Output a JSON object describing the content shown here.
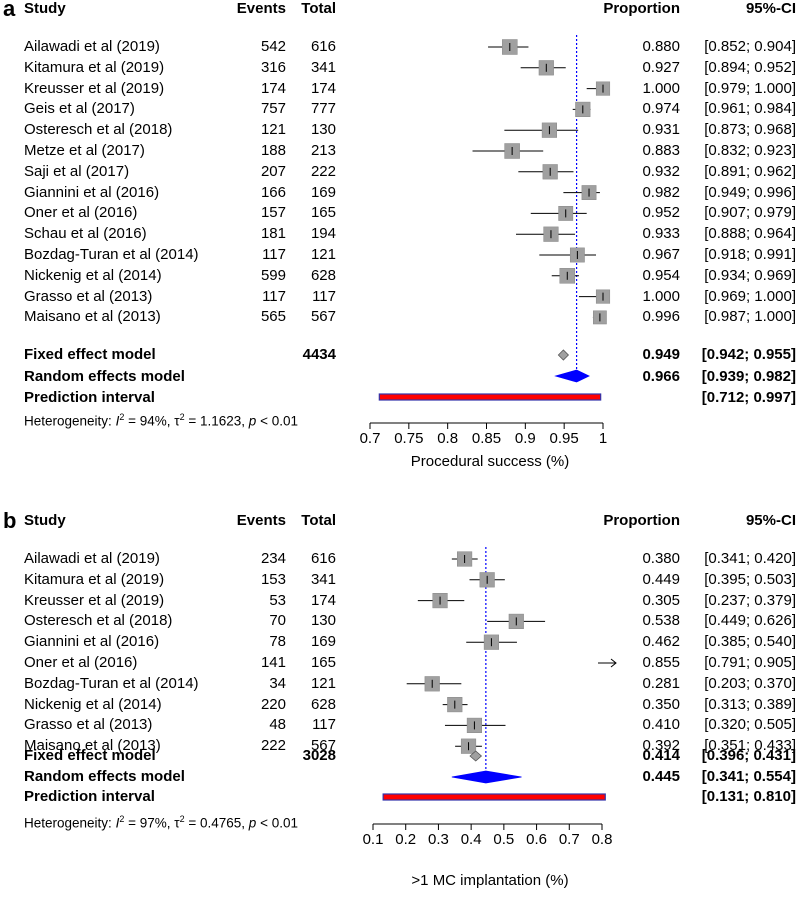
{
  "chart_data": [
    {
      "panel": "a",
      "type": "forest",
      "columns": {
        "study": "Study",
        "events": "Events",
        "total": "Total",
        "proportion": "Proportion",
        "ci": "95%-CI"
      },
      "studies": [
        {
          "study": "Ailawadi et al (2019)",
          "events": "542",
          "total": "616",
          "prop": 0.88,
          "lo": 0.852,
          "hi": 0.904,
          "prop_text": "0.880",
          "ci_text": "[0.852; 0.904]",
          "weight": 1.0
        },
        {
          "study": "Kitamura et al (2019)",
          "events": "316",
          "total": "341",
          "prop": 0.927,
          "lo": 0.894,
          "hi": 0.952,
          "prop_text": "0.927",
          "ci_text": "[0.894; 0.952]",
          "weight": 0.95
        },
        {
          "study": "Kreusser et al (2019)",
          "events": "174",
          "total": "174",
          "prop": 1.0,
          "lo": 0.979,
          "hi": 1.0,
          "prop_text": "1.000",
          "ci_text": "[0.979; 1.000]",
          "weight": 0.8
        },
        {
          "study": "Geis et al (2017)",
          "events": "757",
          "total": "777",
          "prop": 0.974,
          "lo": 0.961,
          "hi": 0.984,
          "prop_text": "0.974",
          "ci_text": "[0.961; 0.984]",
          "weight": 0.95
        },
        {
          "study": "Osteresch et al (2018)",
          "events": "121",
          "total": "130",
          "prop": 0.931,
          "lo": 0.873,
          "hi": 0.968,
          "prop_text": "0.931",
          "ci_text": "[0.873; 0.968]",
          "weight": 0.95
        },
        {
          "study": "Metze et al (2017)",
          "events": "188",
          "total": "213",
          "prop": 0.883,
          "lo": 0.832,
          "hi": 0.923,
          "prop_text": "0.883",
          "ci_text": "[0.832; 0.923]",
          "weight": 1.0
        },
        {
          "study": "Saji et al (2017)",
          "events": "207",
          "total": "222",
          "prop": 0.932,
          "lo": 0.891,
          "hi": 0.962,
          "prop_text": "0.932",
          "ci_text": "[0.891; 0.962]",
          "weight": 0.95
        },
        {
          "study": "Giannini et al (2016)",
          "events": "166",
          "total": "169",
          "prop": 0.982,
          "lo": 0.949,
          "hi": 0.996,
          "prop_text": "0.982",
          "ci_text": "[0.949; 0.996]",
          "weight": 0.9
        },
        {
          "study": "Oner et al (2016)",
          "events": "157",
          "total": "165",
          "prop": 0.952,
          "lo": 0.907,
          "hi": 0.979,
          "prop_text": "0.952",
          "ci_text": "[0.907; 0.979]",
          "weight": 0.9
        },
        {
          "study": "Schau et al (2016)",
          "events": "181",
          "total": "194",
          "prop": 0.933,
          "lo": 0.888,
          "hi": 0.964,
          "prop_text": "0.933",
          "ci_text": "[0.888; 0.964]",
          "weight": 0.95
        },
        {
          "study": "Bozdag-Turan et al (2014)",
          "events": "117",
          "total": "121",
          "prop": 0.967,
          "lo": 0.918,
          "hi": 0.991,
          "prop_text": "0.967",
          "ci_text": "[0.918; 0.991]",
          "weight": 0.9
        },
        {
          "study": "Nickenig et al (2014)",
          "events": "599",
          "total": "628",
          "prop": 0.954,
          "lo": 0.934,
          "hi": 0.969,
          "prop_text": "0.954",
          "ci_text": "[0.934; 0.969]",
          "weight": 1.0
        },
        {
          "study": "Grasso et al (2013)",
          "events": "117",
          "total": "117",
          "prop": 1.0,
          "lo": 0.969,
          "hi": 1.0,
          "prop_text": "1.000",
          "ci_text": "[0.969; 1.000]",
          "weight": 0.8
        },
        {
          "study": "Maisano et al (2013)",
          "events": "565",
          "total": "567",
          "prop": 0.996,
          "lo": 0.987,
          "hi": 1.0,
          "prop_text": "0.996",
          "ci_text": "[0.987; 1.000]",
          "weight": 0.75
        }
      ],
      "fixed": {
        "label": "Fixed effect model",
        "total": "4434",
        "prop": 0.949,
        "lo": 0.942,
        "hi": 0.955,
        "prop_text": "0.949",
        "ci_text": "[0.942; 0.955]"
      },
      "random": {
        "label": "Random effects model",
        "prop": 0.966,
        "lo": 0.939,
        "hi": 0.982,
        "prop_text": "0.966",
        "ci_text": "[0.939; 0.982]"
      },
      "prediction": {
        "label": "Prediction interval",
        "lo": 0.712,
        "hi": 0.997,
        "ci_text": "[0.712; 0.997]"
      },
      "heterogeneity": {
        "prefix": "Heterogeneity: ",
        "i2_sym": "I",
        "i2_value": " = 94%, τ",
        "tau2_value": " = 1.1623, ",
        "p_sym": "p",
        "p_value": " < 0.01"
      },
      "axis": {
        "min": 0.7,
        "max": 1.0,
        "ticks": [
          0.7,
          0.75,
          0.8,
          0.85,
          0.9,
          0.95,
          1.0
        ],
        "tick_labels": [
          "0.7",
          "0.75",
          "0.8",
          "0.85",
          "0.9",
          "0.95",
          "1"
        ],
        "label": "Procedural success (%)"
      }
    },
    {
      "panel": "b",
      "type": "forest",
      "columns": {
        "study": "Study",
        "events": "Events",
        "total": "Total",
        "proportion": "Proportion",
        "ci": "95%-CI"
      },
      "studies": [
        {
          "study": "Ailawadi et al (2019)",
          "events": "234",
          "total": "616",
          "prop": 0.38,
          "lo": 0.341,
          "hi": 0.42,
          "prop_text": "0.380",
          "ci_text": "[0.341; 0.420]",
          "weight": 0.95
        },
        {
          "study": "Kitamura et al (2019)",
          "events": "153",
          "total": "341",
          "prop": 0.449,
          "lo": 0.395,
          "hi": 0.503,
          "prop_text": "0.449",
          "ci_text": "[0.395; 0.503]",
          "weight": 0.95
        },
        {
          "study": "Kreusser et al (2019)",
          "events": "53",
          "total": "174",
          "prop": 0.305,
          "lo": 0.237,
          "hi": 0.379,
          "prop_text": "0.305",
          "ci_text": "[0.237; 0.379]",
          "weight": 0.95
        },
        {
          "study": "Osteresch et al (2018)",
          "events": "70",
          "total": "130",
          "prop": 0.538,
          "lo": 0.449,
          "hi": 0.626,
          "prop_text": "0.538",
          "ci_text": "[0.449; 0.626]",
          "weight": 0.95
        },
        {
          "study": "Giannini et al (2016)",
          "events": "78",
          "total": "169",
          "prop": 0.462,
          "lo": 0.385,
          "hi": 0.54,
          "prop_text": "0.462",
          "ci_text": "[0.385; 0.540]",
          "weight": 0.95
        },
        {
          "study": "Oner et al (2016)",
          "events": "141",
          "total": "165",
          "prop": 0.855,
          "lo": 0.791,
          "hi": 0.905,
          "prop_text": "0.855",
          "ci_text": "[0.791; 0.905]",
          "weight": 0.95,
          "offscale": true
        },
        {
          "study": "Bozdag-Turan et al (2014)",
          "events": "34",
          "total": "121",
          "prop": 0.281,
          "lo": 0.203,
          "hi": 0.37,
          "prop_text": "0.281",
          "ci_text": "[0.203; 0.370]",
          "weight": 0.95
        },
        {
          "study": "Nickenig et al (2014)",
          "events": "220",
          "total": "628",
          "prop": 0.35,
          "lo": 0.313,
          "hi": 0.389,
          "prop_text": "0.350",
          "ci_text": "[0.313; 0.389]",
          "weight": 0.95
        },
        {
          "study": "Grasso et al (2013)",
          "events": "48",
          "total": "117",
          "prop": 0.41,
          "lo": 0.32,
          "hi": 0.505,
          "prop_text": "0.410",
          "ci_text": "[0.320; 0.505]",
          "weight": 0.95
        },
        {
          "study": "Maisano et al (2013)",
          "events": "222",
          "total": "567",
          "prop": 0.392,
          "lo": 0.351,
          "hi": 0.433,
          "prop_text": "0.392",
          "ci_text": "[0.351; 0.433]",
          "weight": 0.95
        }
      ],
      "fixed": {
        "label": "Fixed effect model",
        "total": "3028",
        "prop": 0.414,
        "lo": 0.396,
        "hi": 0.431,
        "prop_text": "0.414",
        "ci_text": "[0.396; 0.431]"
      },
      "random": {
        "label": "Random effects model",
        "prop": 0.445,
        "lo": 0.341,
        "hi": 0.554,
        "prop_text": "0.445",
        "ci_text": "[0.341; 0.554]"
      },
      "prediction": {
        "label": "Prediction interval",
        "lo": 0.131,
        "hi": 0.81,
        "ci_text": "[0.131; 0.810]"
      },
      "heterogeneity": {
        "prefix": "Heterogeneity: ",
        "i2_sym": "I",
        "i2_value": " = 97%, τ",
        "tau2_value": " = 0.4765, ",
        "p_sym": "p",
        "p_value": " < 0.01"
      },
      "axis": {
        "min": 0.1,
        "max": 0.8,
        "ticks": [
          0.1,
          0.2,
          0.3,
          0.4,
          0.5,
          0.6,
          0.7,
          0.8
        ],
        "tick_labels": [
          "0.1",
          "0.2",
          "0.3",
          "0.4",
          "0.5",
          "0.6",
          "0.7",
          "0.8"
        ],
        "label": ">1 MC implantation (%)"
      }
    }
  ],
  "panels": {
    "a": "a",
    "b": "b"
  },
  "colors": {
    "square": "#a0a0a0",
    "square_edge": "#888888",
    "diamond_fixed": "#a0a0a0",
    "diamond_random": "#0000ff",
    "ref_line": "#0000ff",
    "pred_fill": "#ff0000",
    "pred_edge": "#3333aa"
  }
}
